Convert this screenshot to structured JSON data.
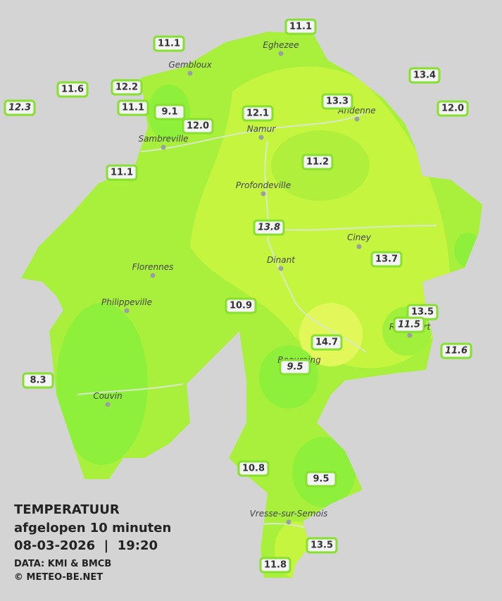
{
  "map": {
    "title": "TEMPERATUUR",
    "subtitle": "afgelopen 10 minuten",
    "datetime": "08-03-2026  |  19:20",
    "source": "DATA: KMI & BMCB",
    "credit": "© METEO-BE.NET",
    "towns": [
      {
        "name": "Eghezee"
      },
      {
        "name": "Gembloux"
      },
      {
        "name": "Andenne"
      },
      {
        "name": "Namur"
      },
      {
        "name": "Sambreville"
      },
      {
        "name": "Profondeville"
      },
      {
        "name": "Ciney"
      },
      {
        "name": "Dinant"
      },
      {
        "name": "Florennes"
      },
      {
        "name": "Philippeville"
      },
      {
        "name": "Rochefort"
      },
      {
        "name": "Beauraing"
      },
      {
        "name": "Couvin"
      },
      {
        "name": "Vresse-sur-Semois"
      }
    ],
    "stations": [
      {
        "label": "11.1",
        "italic": false
      },
      {
        "label": "11.1",
        "italic": false
      },
      {
        "label": "13.4",
        "italic": false
      },
      {
        "label": "11.6",
        "italic": false
      },
      {
        "label": "12.2",
        "italic": false
      },
      {
        "label": "12.3",
        "italic": true
      },
      {
        "label": "11.1",
        "italic": false
      },
      {
        "label": "9.1",
        "italic": false
      },
      {
        "label": "12.1",
        "italic": false
      },
      {
        "label": "13.3",
        "italic": false
      },
      {
        "label": "12.0",
        "italic": false
      },
      {
        "label": "12.0",
        "italic": false
      },
      {
        "label": "11.2",
        "italic": false
      },
      {
        "label": "11.1",
        "italic": false
      },
      {
        "label": "13.8",
        "italic": true
      },
      {
        "label": "13.7",
        "italic": false
      },
      {
        "label": "10.9",
        "italic": false
      },
      {
        "label": "13.5",
        "italic": false
      },
      {
        "label": "11.5",
        "italic": true
      },
      {
        "label": "14.7",
        "italic": false
      },
      {
        "label": "11.6",
        "italic": true
      },
      {
        "label": "9.5",
        "italic": true
      },
      {
        "label": "8.3",
        "italic": false
      },
      {
        "label": "10.8",
        "italic": false
      },
      {
        "label": "9.5",
        "italic": false
      },
      {
        "label": "13.5",
        "italic": false
      },
      {
        "label": "11.8",
        "italic": false
      }
    ]
  }
}
